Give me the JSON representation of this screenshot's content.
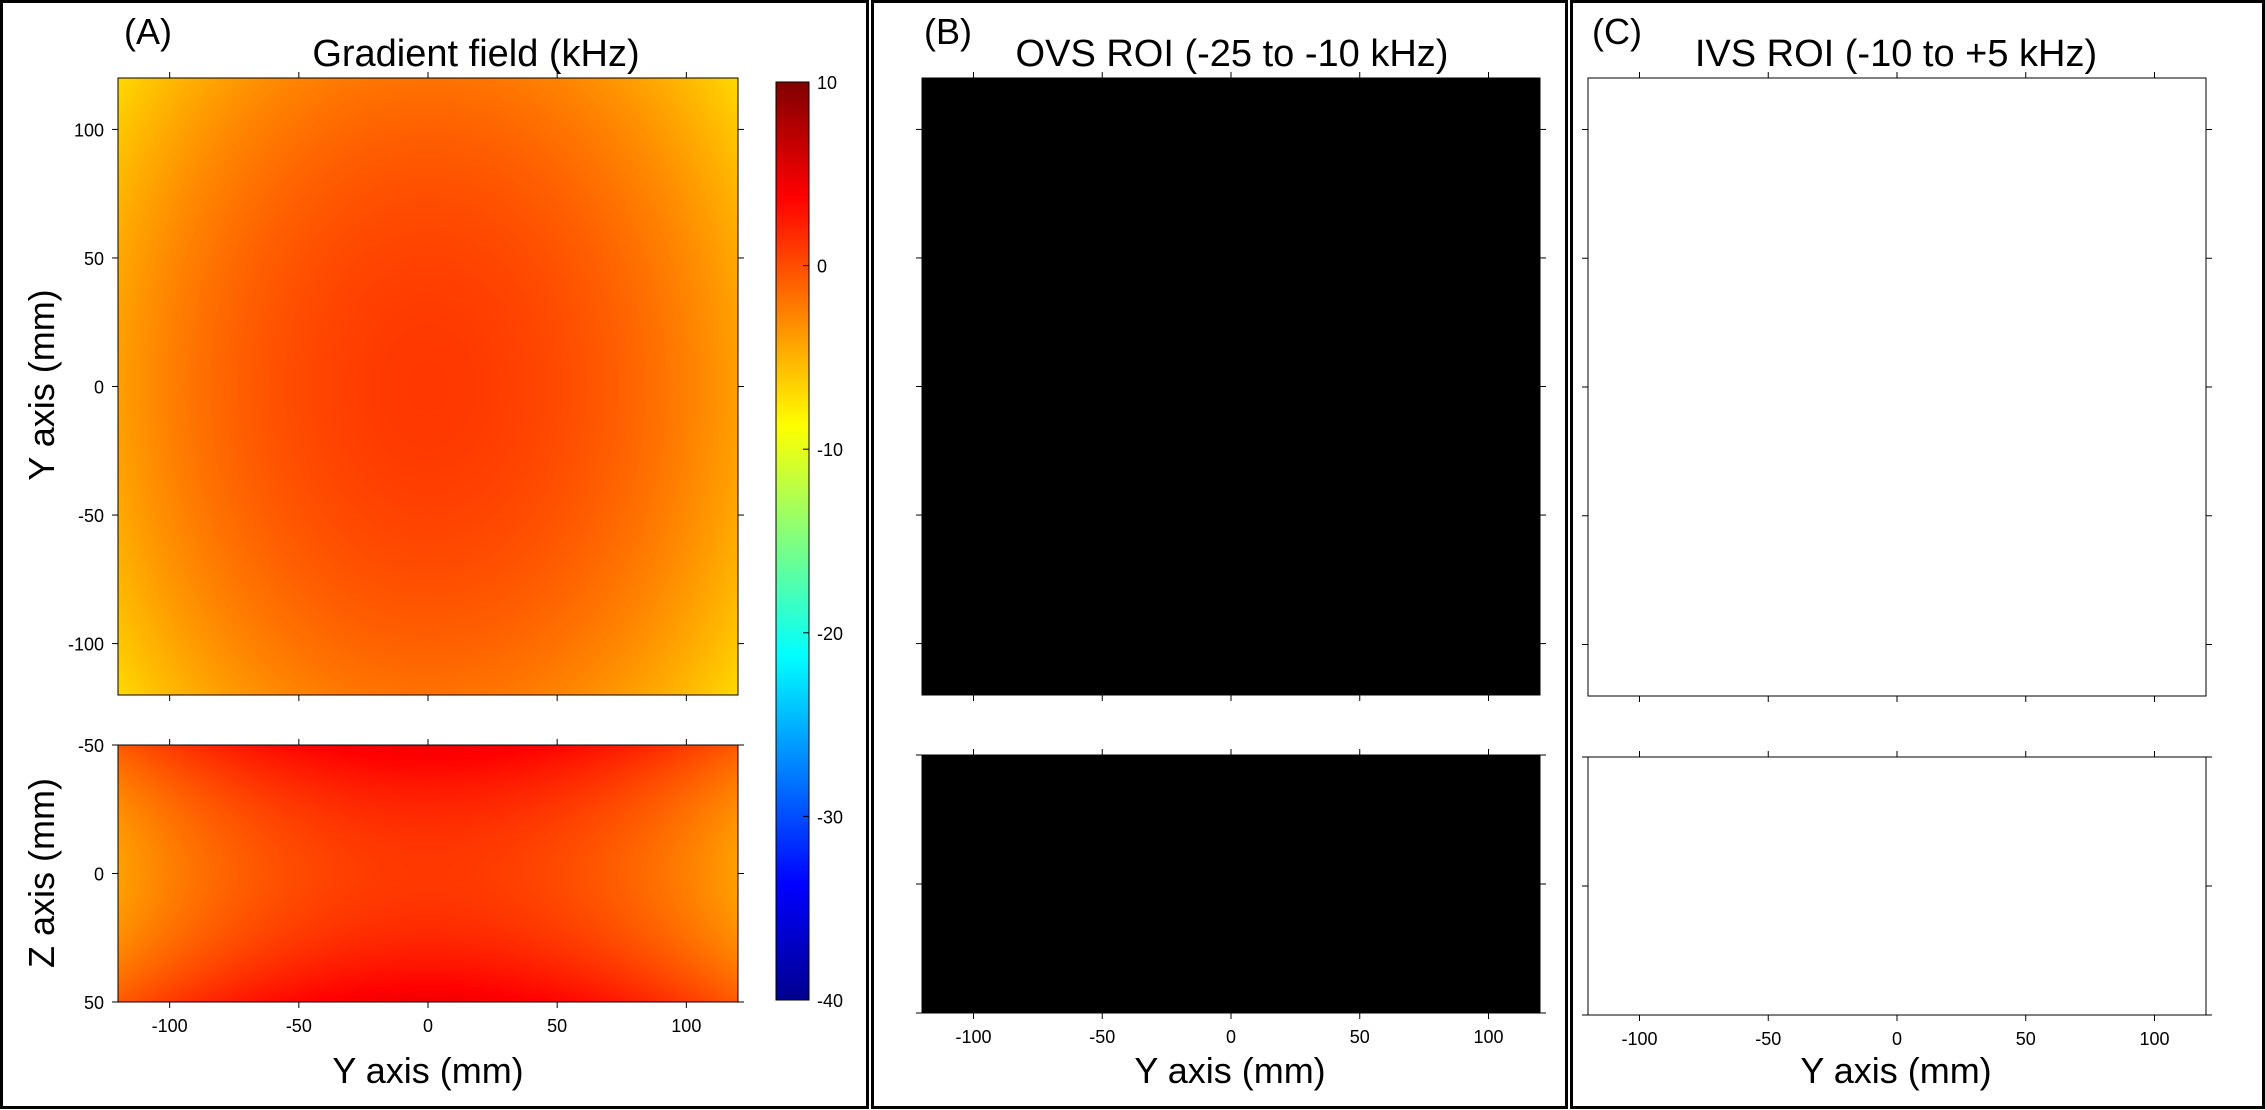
{
  "chart_data": [
    {
      "panel": "(A)",
      "type": "heatmap",
      "title": "Gradient field (kHz)",
      "plots": [
        {
          "ylabel": "Y axis (mm)",
          "xlim": [
            -120,
            120
          ],
          "ylim": [
            -120,
            120
          ],
          "yticks": [
            100,
            50,
            0,
            -50,
            -100
          ]
        },
        {
          "ylabel": "Z axis (mm)",
          "xlabel": "Y axis (mm)",
          "xlim": [
            -120,
            120
          ],
          "ylim": [
            -50,
            50
          ],
          "yticks": [
            -50,
            0,
            50
          ],
          "xticks": [
            -100,
            -50,
            0,
            50,
            100
          ]
        }
      ],
      "colorbar": {
        "min": -40,
        "max": 10,
        "ticks": [
          10,
          0,
          -10,
          -20,
          -30,
          -40
        ],
        "colormap": "jet"
      }
    },
    {
      "panel": "(B)",
      "type": "heatmap",
      "title": "OVS ROI (-25 to -10 kHz)",
      "plots": [
        {
          "xlim": [
            -120,
            120
          ],
          "ylim": [
            -120,
            120
          ]
        },
        {
          "xlabel": "Y axis (mm)",
          "xlim": [
            -120,
            120
          ],
          "ylim": [
            -50,
            50
          ],
          "xticks": [
            -100,
            -50,
            0,
            50,
            100
          ]
        }
      ],
      "colors": {
        "inside": "#ffffff",
        "outside": "#000000"
      }
    },
    {
      "panel": "(C)",
      "type": "heatmap",
      "title": "IVS ROI (-10 to +5 kHz)",
      "plots": [
        {
          "xlim": [
            -120,
            120
          ],
          "ylim": [
            -120,
            120
          ]
        },
        {
          "xlabel": "Y axis (mm)",
          "xlim": [
            -120,
            120
          ],
          "ylim": [
            -50,
            50
          ],
          "xticks": [
            -100,
            -50,
            0,
            50,
            100
          ]
        }
      ],
      "colors": {
        "inside": "#ffffff",
        "outside": "#000000"
      }
    }
  ]
}
